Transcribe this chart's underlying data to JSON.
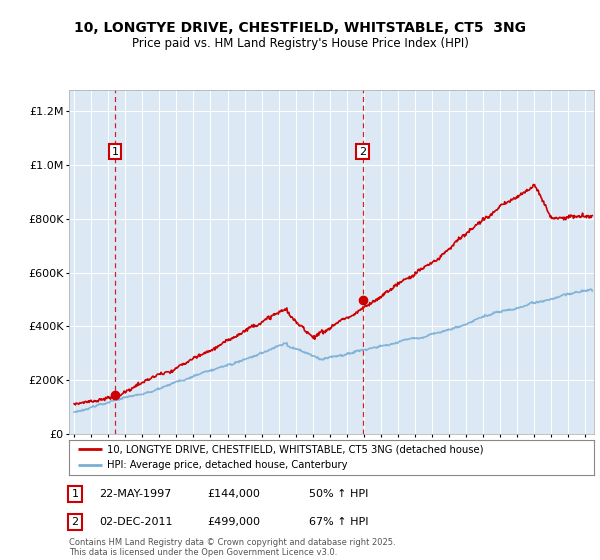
{
  "title_line1": "10, LONGTYE DRIVE, CHESTFIELD, WHITSTABLE, CT5  3NG",
  "title_line2": "Price paid vs. HM Land Registry's House Price Index (HPI)",
  "background_color": "#dce9f5",
  "sale1_date": 1997.39,
  "sale1_price": 144000,
  "sale1_label": "1",
  "sale2_date": 2011.92,
  "sale2_price": 499000,
  "sale2_label": "2",
  "legend_line1": "10, LONGTYE DRIVE, CHESTFIELD, WHITSTABLE, CT5 3NG (detached house)",
  "legend_line2": "HPI: Average price, detached house, Canterbury",
  "footer": "Contains HM Land Registry data © Crown copyright and database right 2025.\nThis data is licensed under the Open Government Licence v3.0.",
  "red_color": "#cc0000",
  "blue_color": "#7aafd4",
  "ylim": [
    0,
    1280000
  ],
  "xlim_start": 1994.7,
  "xlim_end": 2025.5,
  "yticks": [
    0,
    200000,
    400000,
    600000,
    800000,
    1000000,
    1200000
  ],
  "xticks": [
    1995,
    1996,
    1997,
    1998,
    1999,
    2000,
    2001,
    2002,
    2003,
    2004,
    2005,
    2006,
    2007,
    2008,
    2009,
    2010,
    2011,
    2012,
    2013,
    2014,
    2015,
    2016,
    2017,
    2018,
    2019,
    2020,
    2021,
    2022,
    2023,
    2024,
    2025
  ]
}
